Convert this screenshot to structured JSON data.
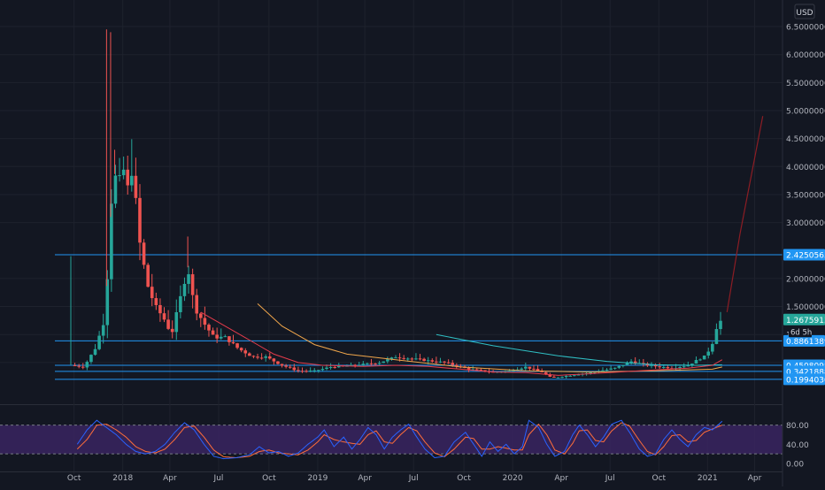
{
  "currency_label": "USD",
  "countdown_label": "6d 5h",
  "chart_data": {
    "type": "candlestick",
    "timeframe": "weekly",
    "price_axis": {
      "min": 0,
      "max": 6.5,
      "grid": true,
      "ticks": [
        {
          "value": 0.5,
          "label": "0.50000000"
        },
        {
          "value": 1.5,
          "label": "1.50000000"
        },
        {
          "value": 2.0,
          "label": "2.00000000"
        },
        {
          "value": 3.0,
          "label": "3.00000000"
        },
        {
          "value": 3.5,
          "label": "3.50000000"
        },
        {
          "value": 4.0,
          "label": "4.00000000"
        },
        {
          "value": 4.5,
          "label": "4.50000000"
        },
        {
          "value": 5.0,
          "label": "5.00000000"
        },
        {
          "value": 5.5,
          "label": "5.50000000"
        },
        {
          "value": 6.0,
          "label": "6.00000000"
        },
        {
          "value": 6.5,
          "label": "6.50000000"
        }
      ],
      "partial_label": {
        "value": 1.0,
        "label": "1.00"
      }
    },
    "time_axis": {
      "labels": [
        {
          "t": 0.2,
          "label": "Oct"
        },
        {
          "t": 3.2,
          "label": "2018"
        },
        {
          "t": 6.1,
          "label": "Apr"
        },
        {
          "t": 9.1,
          "label": "Jul"
        },
        {
          "t": 12.2,
          "label": "Oct"
        },
        {
          "t": 15.2,
          "label": "2019"
        },
        {
          "t": 18.1,
          "label": "Apr"
        },
        {
          "t": 21.1,
          "label": "Jul"
        },
        {
          "t": 24.2,
          "label": "Oct"
        },
        {
          "t": 27.2,
          "label": "2020"
        },
        {
          "t": 30.2,
          "label": "Apr"
        },
        {
          "t": 33.2,
          "label": "Jul"
        },
        {
          "t": 36.2,
          "label": "Oct"
        },
        {
          "t": 39.2,
          "label": "2021"
        },
        {
          "t": 42.1,
          "label": "Apr"
        }
      ]
    },
    "price_lines": [
      {
        "value": 2.4250565,
        "label": "2.42505650"
      },
      {
        "value": 0.88613892,
        "label": "0.88613892"
      },
      {
        "value": 0.45080984,
        "label": "0.45080984"
      },
      {
        "value": 0.34218888,
        "label": "0.34218888"
      },
      {
        "value": 0.19940305,
        "label": "0.19940305"
      }
    ],
    "last_price": {
      "value": 1.26759138,
      "label": "1.26759138"
    },
    "anchors": [
      [
        0.0,
        0.45
      ],
      [
        0.8,
        0.42
      ],
      [
        1.5,
        0.75
      ],
      [
        2.0,
        1.2
      ],
      [
        2.3,
        2.2
      ],
      [
        2.6,
        4.0
      ],
      [
        2.9,
        3.6
      ],
      [
        3.2,
        4.0
      ],
      [
        3.5,
        3.6
      ],
      [
        3.8,
        4.0
      ],
      [
        4.2,
        2.7
      ],
      [
        4.7,
        1.9
      ],
      [
        5.2,
        1.5
      ],
      [
        5.7,
        1.3
      ],
      [
        6.2,
        1.0
      ],
      [
        6.7,
        1.6
      ],
      [
        7.2,
        2.2
      ],
      [
        7.6,
        1.5
      ],
      [
        8.2,
        1.2
      ],
      [
        8.8,
        0.95
      ],
      [
        9.5,
        0.95
      ],
      [
        10.3,
        0.75
      ],
      [
        11.2,
        0.6
      ],
      [
        12.0,
        0.6
      ],
      [
        13.0,
        0.45
      ],
      [
        14.0,
        0.35
      ],
      [
        15.0,
        0.35
      ],
      [
        16.0,
        0.42
      ],
      [
        17.5,
        0.45
      ],
      [
        19.0,
        0.5
      ],
      [
        20.0,
        0.6
      ],
      [
        21.5,
        0.55
      ],
      [
        23.0,
        0.5
      ],
      [
        24.5,
        0.38
      ],
      [
        26.0,
        0.33
      ],
      [
        27.0,
        0.35
      ],
      [
        28.0,
        0.42
      ],
      [
        29.0,
        0.33
      ],
      [
        29.6,
        0.22
      ],
      [
        30.5,
        0.26
      ],
      [
        32.0,
        0.32
      ],
      [
        33.5,
        0.4
      ],
      [
        34.5,
        0.52
      ],
      [
        35.5,
        0.45
      ],
      [
        37.0,
        0.4
      ],
      [
        38.0,
        0.45
      ],
      [
        38.6,
        0.55
      ],
      [
        39.1,
        0.62
      ],
      [
        39.5,
        0.85
      ],
      [
        39.8,
        1.18
      ],
      [
        40.1,
        1.27
      ]
    ],
    "moving_averages": [
      {
        "color": "#f0a64b",
        "points": [
          [
            11.5,
            1.55
          ],
          [
            13.0,
            1.15
          ],
          [
            15.0,
            0.82
          ],
          [
            17.0,
            0.65
          ],
          [
            20.0,
            0.55
          ],
          [
            24.0,
            0.42
          ],
          [
            28.0,
            0.35
          ],
          [
            32.0,
            0.33
          ],
          [
            36.0,
            0.35
          ],
          [
            39.5,
            0.38
          ],
          [
            40.1,
            0.42
          ]
        ]
      },
      {
        "color": "#2fbfc4",
        "points": [
          [
            22.5,
            1.0
          ],
          [
            26.0,
            0.8
          ],
          [
            30.0,
            0.62
          ],
          [
            33.0,
            0.52
          ],
          [
            36.0,
            0.46
          ],
          [
            38.5,
            0.45
          ],
          [
            40.1,
            0.46
          ]
        ]
      },
      {
        "color": "#e53b4b",
        "points": [
          [
            8.0,
            1.4
          ],
          [
            9.5,
            1.15
          ],
          [
            11.0,
            0.9
          ],
          [
            12.5,
            0.65
          ],
          [
            14.0,
            0.5
          ],
          [
            15.5,
            0.45
          ],
          [
            18.0,
            0.43
          ],
          [
            20.0,
            0.45
          ],
          [
            22.0,
            0.43
          ],
          [
            24.0,
            0.38
          ],
          [
            26.0,
            0.33
          ],
          [
            28.0,
            0.32
          ],
          [
            30.0,
            0.27
          ],
          [
            32.0,
            0.3
          ],
          [
            35.0,
            0.35
          ],
          [
            38.0,
            0.4
          ],
          [
            39.5,
            0.45
          ],
          [
            40.1,
            0.55
          ]
        ]
      }
    ],
    "projection": {
      "color": "#8c1d24",
      "points": [
        [
          40.4,
          1.4
        ],
        [
          41.2,
          2.8
        ],
        [
          42.0,
          4.0
        ],
        [
          42.6,
          4.9
        ]
      ]
    },
    "oscillator": {
      "levels": [
        {
          "value": 80,
          "label": "80.00"
        },
        {
          "value": 40,
          "label": "40.00"
        },
        {
          "value": 0,
          "label": "0.00"
        }
      ],
      "band": [
        20,
        80
      ],
      "k_anchors": [
        [
          0.4,
          40
        ],
        [
          1.0,
          70
        ],
        [
          1.6,
          90
        ],
        [
          2.2,
          75
        ],
        [
          2.8,
          60
        ],
        [
          3.4,
          40
        ],
        [
          4.0,
          25
        ],
        [
          4.6,
          20
        ],
        [
          5.2,
          25
        ],
        [
          5.8,
          40
        ],
        [
          6.4,
          65
        ],
        [
          7.0,
          85
        ],
        [
          7.6,
          70
        ],
        [
          8.2,
          40
        ],
        [
          8.8,
          15
        ],
        [
          9.4,
          10
        ],
        [
          10.2,
          12
        ],
        [
          11.0,
          18
        ],
        [
          11.6,
          35
        ],
        [
          12.2,
          22
        ],
        [
          12.8,
          25
        ],
        [
          13.4,
          15
        ],
        [
          14.0,
          22
        ],
        [
          14.6,
          40
        ],
        [
          15.2,
          55
        ],
        [
          15.6,
          70
        ],
        [
          16.2,
          35
        ],
        [
          16.8,
          55
        ],
        [
          17.3,
          30
        ],
        [
          17.8,
          50
        ],
        [
          18.3,
          75
        ],
        [
          18.8,
          60
        ],
        [
          19.3,
          30
        ],
        [
          19.8,
          55
        ],
        [
          20.3,
          70
        ],
        [
          20.8,
          82
        ],
        [
          21.3,
          55
        ],
        [
          21.8,
          30
        ],
        [
          22.4,
          12
        ],
        [
          23.0,
          15
        ],
        [
          23.6,
          45
        ],
        [
          24.3,
          65
        ],
        [
          24.8,
          40
        ],
        [
          25.3,
          15
        ],
        [
          25.8,
          45
        ],
        [
          26.3,
          25
        ],
        [
          26.8,
          40
        ],
        [
          27.3,
          20
        ],
        [
          27.8,
          35
        ],
        [
          28.2,
          90
        ],
        [
          28.8,
          75
        ],
        [
          29.3,
          40
        ],
        [
          29.8,
          15
        ],
        [
          30.4,
          25
        ],
        [
          30.9,
          60
        ],
        [
          31.3,
          80
        ],
        [
          31.8,
          60
        ],
        [
          32.3,
          35
        ],
        [
          32.8,
          55
        ],
        [
          33.3,
          82
        ],
        [
          33.9,
          90
        ],
        [
          34.4,
          65
        ],
        [
          35.0,
          30
        ],
        [
          35.5,
          15
        ],
        [
          36.0,
          20
        ],
        [
          36.5,
          50
        ],
        [
          37.0,
          70
        ],
        [
          37.5,
          50
        ],
        [
          38.0,
          35
        ],
        [
          38.5,
          60
        ],
        [
          39.0,
          75
        ],
        [
          39.5,
          70
        ],
        [
          40.1,
          88
        ]
      ],
      "d_anchors": [
        [
          0.4,
          30
        ],
        [
          1.0,
          50
        ],
        [
          1.6,
          80
        ],
        [
          2.2,
          82
        ],
        [
          2.8,
          70
        ],
        [
          3.4,
          55
        ],
        [
          4.0,
          35
        ],
        [
          4.6,
          25
        ],
        [
          5.2,
          22
        ],
        [
          5.8,
          30
        ],
        [
          6.4,
          50
        ],
        [
          7.0,
          75
        ],
        [
          7.6,
          78
        ],
        [
          8.2,
          55
        ],
        [
          8.8,
          28
        ],
        [
          9.4,
          14
        ],
        [
          10.2,
          12
        ],
        [
          11.0,
          15
        ],
        [
          11.6,
          25
        ],
        [
          12.2,
          28
        ],
        [
          12.8,
          22
        ],
        [
          13.4,
          20
        ],
        [
          14.0,
          18
        ],
        [
          14.6,
          28
        ],
        [
          15.2,
          45
        ],
        [
          15.6,
          60
        ],
        [
          16.2,
          50
        ],
        [
          16.8,
          45
        ],
        [
          17.3,
          42
        ],
        [
          17.8,
          40
        ],
        [
          18.3,
          60
        ],
        [
          18.8,
          68
        ],
        [
          19.3,
          45
        ],
        [
          19.8,
          42
        ],
        [
          20.3,
          60
        ],
        [
          20.8,
          75
        ],
        [
          21.3,
          68
        ],
        [
          21.8,
          45
        ],
        [
          22.4,
          22
        ],
        [
          23.0,
          14
        ],
        [
          23.6,
          30
        ],
        [
          24.3,
          55
        ],
        [
          24.8,
          52
        ],
        [
          25.3,
          30
        ],
        [
          25.8,
          30
        ],
        [
          26.3,
          35
        ],
        [
          26.8,
          32
        ],
        [
          27.3,
          28
        ],
        [
          27.8,
          28
        ],
        [
          28.2,
          60
        ],
        [
          28.8,
          82
        ],
        [
          29.3,
          60
        ],
        [
          29.8,
          28
        ],
        [
          30.4,
          20
        ],
        [
          30.9,
          42
        ],
        [
          31.3,
          68
        ],
        [
          31.8,
          70
        ],
        [
          32.3,
          48
        ],
        [
          32.8,
          45
        ],
        [
          33.3,
          68
        ],
        [
          33.9,
          85
        ],
        [
          34.4,
          78
        ],
        [
          35.0,
          48
        ],
        [
          35.5,
          25
        ],
        [
          36.0,
          18
        ],
        [
          36.5,
          35
        ],
        [
          37.0,
          58
        ],
        [
          37.5,
          60
        ],
        [
          38.0,
          45
        ],
        [
          38.5,
          48
        ],
        [
          39.0,
          65
        ],
        [
          39.5,
          72
        ],
        [
          40.1,
          80
        ]
      ]
    }
  }
}
